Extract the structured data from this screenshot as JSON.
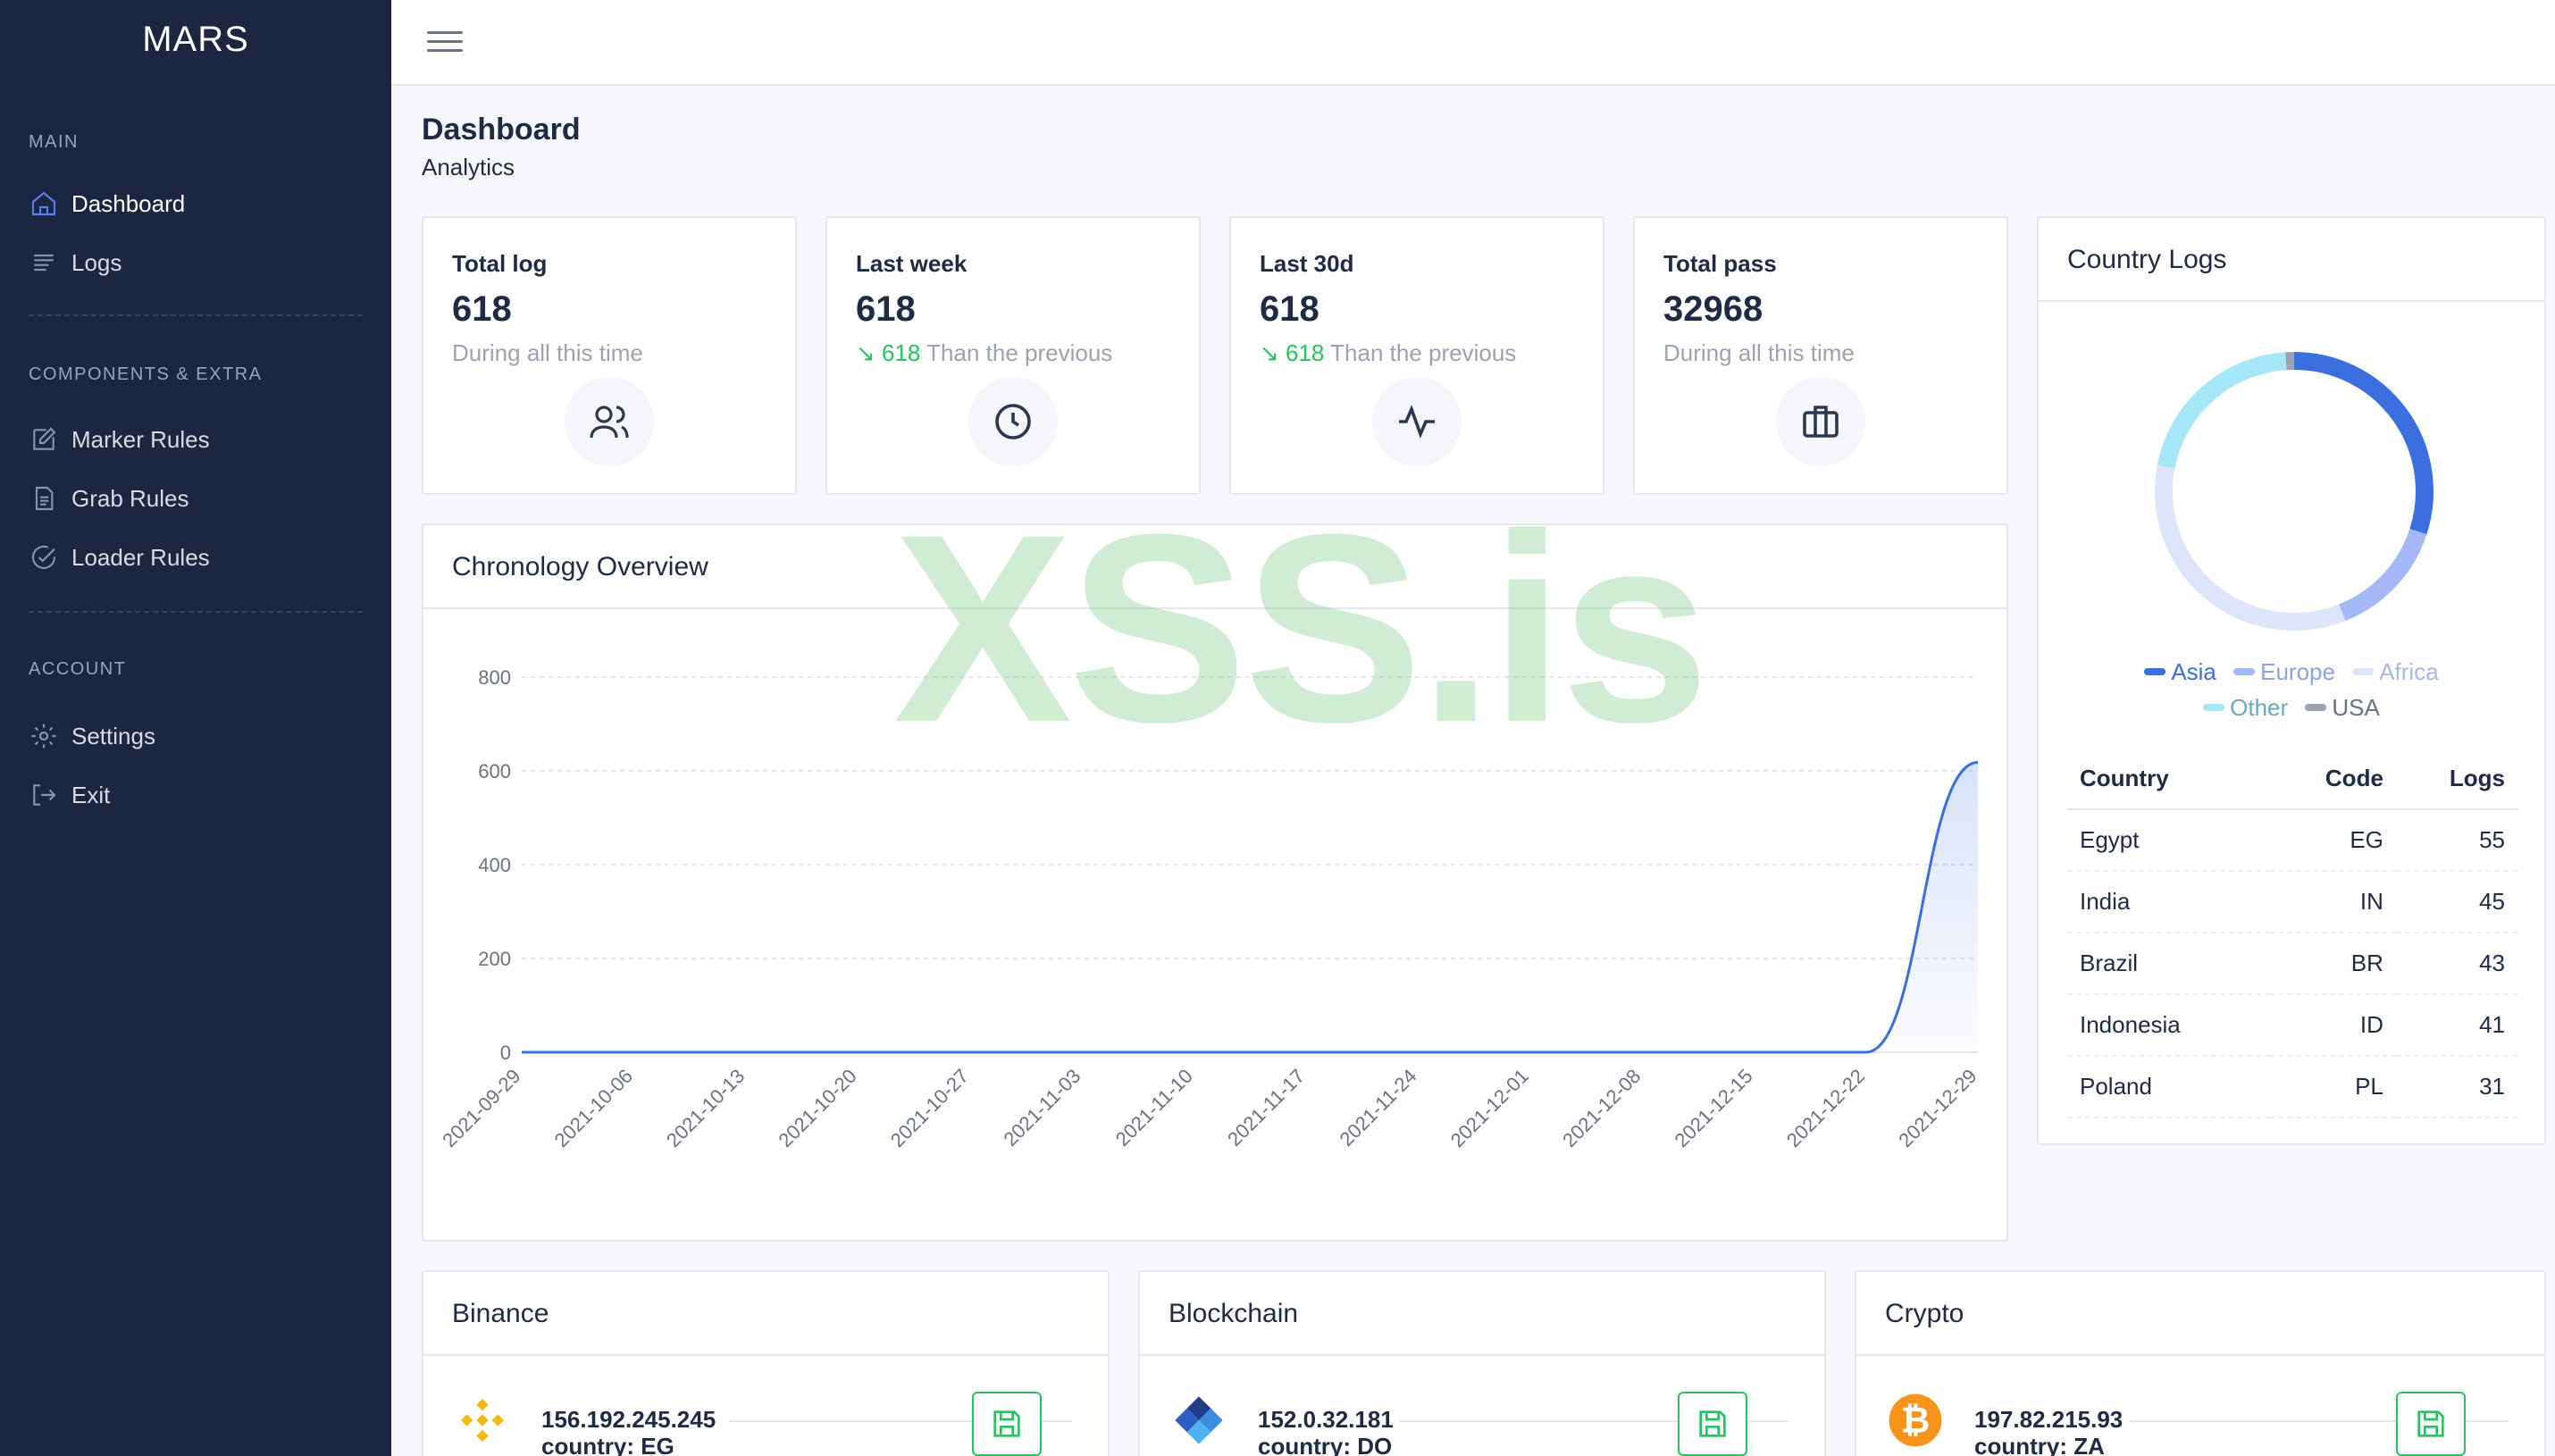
{
  "sidebar": {
    "brand": "MARS",
    "sections": {
      "main": "MAIN",
      "components": "COMPONENTS & EXTRA",
      "account": "ACCOUNT"
    },
    "items": {
      "dashboard": "Dashboard",
      "logs": "Logs",
      "marker_rules": "Marker Rules",
      "grab_rules": "Grab Rules",
      "loader_rules": "Loader Rules",
      "settings": "Settings",
      "exit": "Exit"
    },
    "icons": [
      "home-icon",
      "list-icon",
      "edit-icon",
      "file-icon",
      "check-circle-icon",
      "gear-icon",
      "exit-icon"
    ]
  },
  "header": {
    "title": "Dashboard",
    "subtitle": "Analytics"
  },
  "stats": [
    {
      "title": "Total log",
      "value": "618",
      "note": "During all this time",
      "icon": "users-icon"
    },
    {
      "title": "Last week",
      "value": "618",
      "trend": "618",
      "note": " Than the previous",
      "icon": "clock-icon"
    },
    {
      "title": "Last 30d",
      "value": "618",
      "trend": "618",
      "note": " Than the previous",
      "icon": "activity-icon"
    },
    {
      "title": "Total pass",
      "value": "32968",
      "note": "During all this time",
      "icon": "briefcase-icon"
    }
  ],
  "chronology": {
    "title": "Chronology Overview",
    "chart_data": {
      "type": "area",
      "x": [
        "2021-09-29",
        "2021-10-06",
        "2021-10-13",
        "2021-10-20",
        "2021-10-27",
        "2021-11-03",
        "2021-11-10",
        "2021-11-17",
        "2021-11-24",
        "2021-12-01",
        "2021-12-08",
        "2021-12-15",
        "2021-12-22",
        "2021-12-29"
      ],
      "values": [
        0,
        0,
        0,
        0,
        0,
        0,
        0,
        0,
        0,
        0,
        0,
        0,
        0,
        618
      ],
      "yticks": [
        0,
        200,
        400,
        600,
        800
      ],
      "ylim": [
        0,
        800
      ],
      "grid": true,
      "color": "#3b6fe0"
    }
  },
  "country_logs": {
    "title": "Country Logs",
    "chart_data": {
      "type": "pie",
      "donut": true,
      "labels": [
        "Asia",
        "Europe",
        "Africa",
        "Other",
        "USA"
      ],
      "values": [
        30,
        14,
        34,
        21,
        1
      ],
      "colors": [
        "#3b6fe0",
        "#a3b8f4",
        "#dde5fa",
        "#a6e7f7",
        "#9ca3af"
      ]
    },
    "table": {
      "headers": [
        "Country",
        "Code",
        "Logs"
      ],
      "rows": [
        [
          "Egypt",
          "EG",
          "55"
        ],
        [
          "India",
          "IN",
          "45"
        ],
        [
          "Brazil",
          "BR",
          "43"
        ],
        [
          "Indonesia",
          "ID",
          "41"
        ],
        [
          "Poland",
          "PL",
          "31"
        ]
      ]
    }
  },
  "wallets": [
    {
      "title": "Binance",
      "ip": "156.192.245.245",
      "country": "country: EG",
      "logo": "binance-logo-icon"
    },
    {
      "title": "Blockchain",
      "ip": "152.0.32.181",
      "country": "country: DO",
      "logo": "blockchain-logo-icon"
    },
    {
      "title": "Crypto",
      "ip": "197.82.215.93",
      "country": "country: ZA",
      "logo": "bitcoin-logo-icon"
    }
  ],
  "watermark": "XSS.is",
  "colors": {
    "sidebar_bg": "#1c2641",
    "accent": "#3b6fe0",
    "positive": "#22c55e"
  }
}
